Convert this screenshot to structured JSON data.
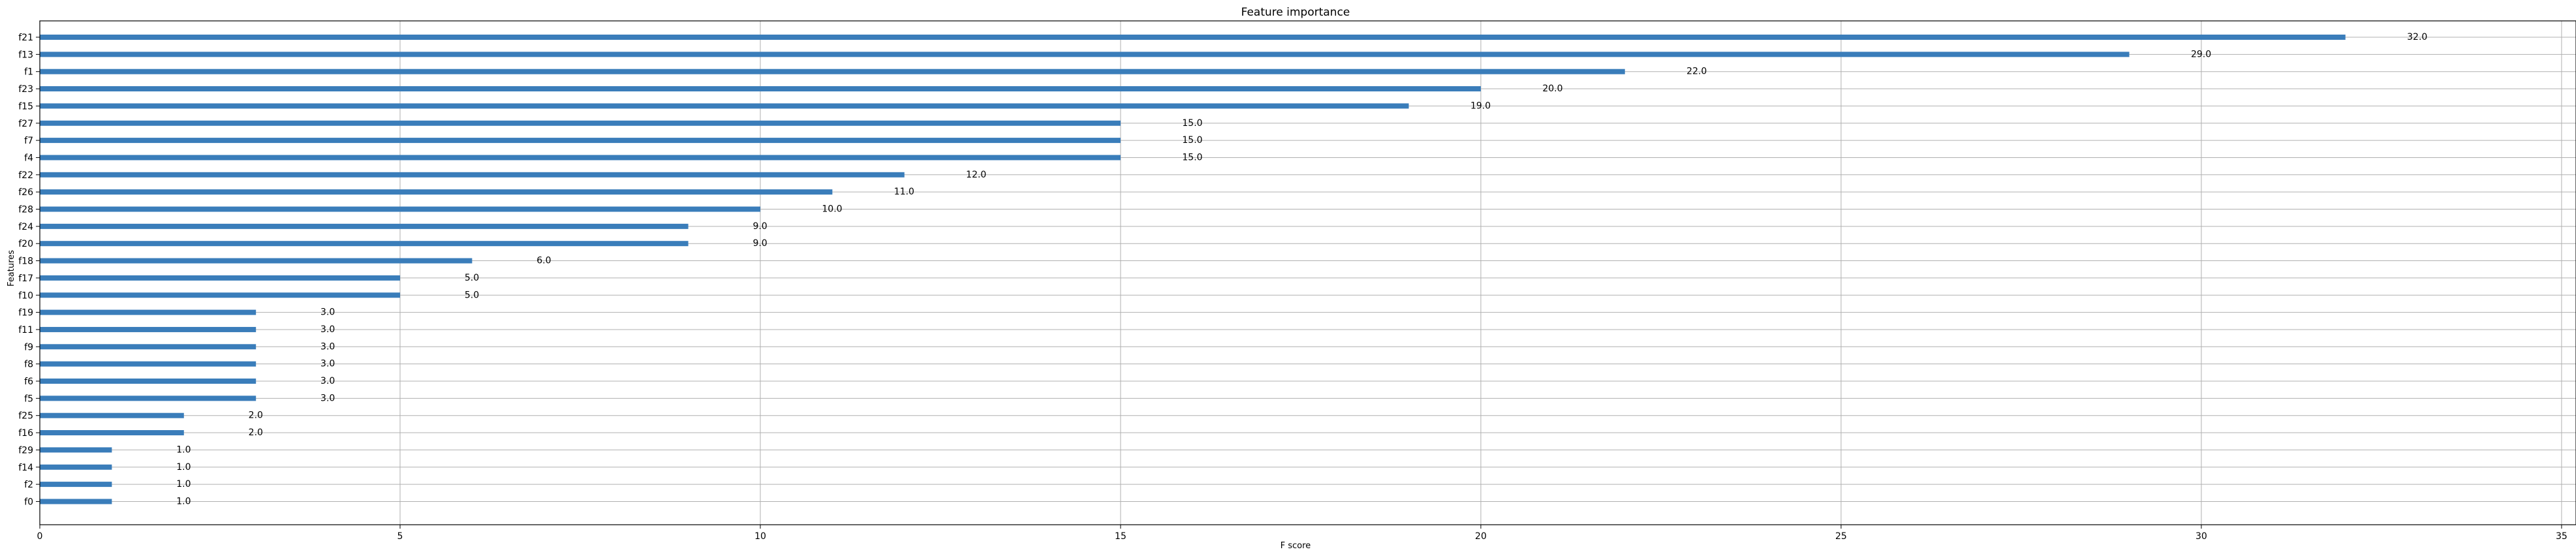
{
  "chart_data": {
    "type": "bar",
    "orientation": "horizontal",
    "title": "Feature importance",
    "xlabel": "F score",
    "ylabel": "Features",
    "xlim": [
      0,
      35.2
    ],
    "xticks": [
      0,
      5,
      10,
      15,
      20,
      25,
      30,
      35
    ],
    "grid": true,
    "bar_color": "#3a7dba",
    "categories": [
      "f21",
      "f13",
      "f1",
      "f23",
      "f15",
      "f27",
      "f7",
      "f4",
      "f22",
      "f26",
      "f28",
      "f24",
      "f20",
      "f18",
      "f17",
      "f10",
      "f19",
      "f11",
      "f9",
      "f8",
      "f6",
      "f5",
      "f25",
      "f16",
      "f29",
      "f14",
      "f2",
      "f0"
    ],
    "values": [
      32,
      29,
      22,
      20,
      19,
      15,
      15,
      15,
      12,
      11,
      10,
      9,
      9,
      6,
      5,
      5,
      3,
      3,
      3,
      3,
      3,
      3,
      2,
      2,
      1,
      1,
      1,
      1
    ],
    "value_labels": [
      "32.0",
      "29.0",
      "22.0",
      "20.0",
      "19.0",
      "15.0",
      "15.0",
      "15.0",
      "12.0",
      "11.0",
      "10.0",
      "9.0",
      "9.0",
      "6.0",
      "5.0",
      "5.0",
      "3.0",
      "3.0",
      "3.0",
      "3.0",
      "3.0",
      "3.0",
      "2.0",
      "2.0",
      "1.0",
      "1.0",
      "1.0",
      "1.0"
    ]
  }
}
